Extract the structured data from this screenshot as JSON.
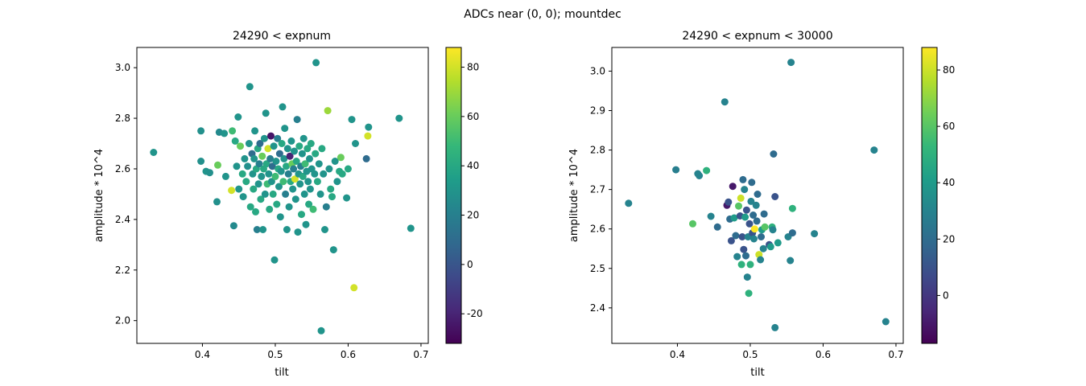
{
  "figure": {
    "suptitle": "ADCs near (0, 0); mountdec"
  },
  "colormap": {
    "name": "viridis",
    "stops": [
      "#440154",
      "#482878",
      "#3e4989",
      "#31688e",
      "#26828e",
      "#1f9e89",
      "#35b779",
      "#6ece58",
      "#b5de2b",
      "#fde725"
    ]
  },
  "chart_data": [
    {
      "type": "scatter",
      "title": "24290 < expnum",
      "xlabel": "tilt",
      "ylabel": "amplitude * 10^4",
      "xlim": [
        0.31,
        0.71
      ],
      "ylim": [
        1.91,
        3.08
      ],
      "xticks": [
        "0.4",
        "0.5",
        "0.6",
        "0.7"
      ],
      "yticks": [
        "2.0",
        "2.2",
        "2.4",
        "2.6",
        "2.8",
        "3.0"
      ],
      "colorbar": {
        "range": [
          -32,
          88
        ],
        "ticks": [
          "-20",
          "0",
          "20",
          "40",
          "60",
          "80"
        ]
      },
      "grid": false,
      "points": [
        {
          "x": 0.333,
          "y": 2.665,
          "c": 30
        },
        {
          "x": 0.398,
          "y": 2.75,
          "c": 28
        },
        {
          "x": 0.398,
          "y": 2.63,
          "c": 28
        },
        {
          "x": 0.405,
          "y": 2.59,
          "c": 30
        },
        {
          "x": 0.41,
          "y": 2.585,
          "c": 28
        },
        {
          "x": 0.42,
          "y": 2.47,
          "c": 28
        },
        {
          "x": 0.421,
          "y": 2.615,
          "c": 60
        },
        {
          "x": 0.423,
          "y": 2.745,
          "c": 25
        },
        {
          "x": 0.43,
          "y": 2.74,
          "c": 30
        },
        {
          "x": 0.432,
          "y": 2.57,
          "c": 30
        },
        {
          "x": 0.44,
          "y": 2.515,
          "c": 80
        },
        {
          "x": 0.441,
          "y": 2.75,
          "c": 50
        },
        {
          "x": 0.443,
          "y": 2.375,
          "c": 25
        },
        {
          "x": 0.445,
          "y": 2.71,
          "c": 40
        },
        {
          "x": 0.447,
          "y": 2.61,
          "c": 30
        },
        {
          "x": 0.449,
          "y": 2.805,
          "c": 30
        },
        {
          "x": 0.45,
          "y": 2.52,
          "c": 30
        },
        {
          "x": 0.452,
          "y": 2.69,
          "c": 60
        },
        {
          "x": 0.455,
          "y": 2.58,
          "c": 40
        },
        {
          "x": 0.456,
          "y": 2.49,
          "c": 30
        },
        {
          "x": 0.458,
          "y": 2.64,
          "c": 30
        },
        {
          "x": 0.46,
          "y": 2.55,
          "c": 40
        },
        {
          "x": 0.462,
          "y": 2.61,
          "c": 28
        },
        {
          "x": 0.464,
          "y": 2.7,
          "c": 30
        },
        {
          "x": 0.465,
          "y": 2.925,
          "c": 30
        },
        {
          "x": 0.466,
          "y": 2.45,
          "c": 40
        },
        {
          "x": 0.468,
          "y": 2.66,
          "c": 10
        },
        {
          "x": 0.469,
          "y": 2.58,
          "c": 30
        },
        {
          "x": 0.47,
          "y": 2.52,
          "c": 40
        },
        {
          "x": 0.471,
          "y": 2.64,
          "c": 30
        },
        {
          "x": 0.472,
          "y": 2.75,
          "c": 30
        },
        {
          "x": 0.473,
          "y": 2.43,
          "c": 40
        },
        {
          "x": 0.474,
          "y": 2.6,
          "c": 40
        },
        {
          "x": 0.475,
          "y": 2.36,
          "c": 20
        },
        {
          "x": 0.476,
          "y": 2.68,
          "c": 40
        },
        {
          "x": 0.477,
          "y": 2.54,
          "c": 30
        },
        {
          "x": 0.478,
          "y": 2.62,
          "c": 20
        },
        {
          "x": 0.479,
          "y": 2.7,
          "c": 10
        },
        {
          "x": 0.48,
          "y": 2.48,
          "c": 40
        },
        {
          "x": 0.481,
          "y": 2.57,
          "c": 30
        },
        {
          "x": 0.482,
          "y": 2.65,
          "c": 60
        },
        {
          "x": 0.483,
          "y": 2.36,
          "c": 30
        },
        {
          "x": 0.484,
          "y": 2.6,
          "c": 40
        },
        {
          "x": 0.485,
          "y": 2.72,
          "c": 30
        },
        {
          "x": 0.486,
          "y": 2.5,
          "c": 30
        },
        {
          "x": 0.487,
          "y": 2.82,
          "c": 30
        },
        {
          "x": 0.488,
          "y": 2.62,
          "c": 40
        },
        {
          "x": 0.489,
          "y": 2.54,
          "c": 50
        },
        {
          "x": 0.49,
          "y": 2.68,
          "c": 80
        },
        {
          "x": 0.491,
          "y": 2.58,
          "c": 30
        },
        {
          "x": 0.492,
          "y": 2.44,
          "c": 40
        },
        {
          "x": 0.493,
          "y": 2.64,
          "c": 20
        },
        {
          "x": 0.494,
          "y": 2.73,
          "c": -25
        },
        {
          "x": 0.495,
          "y": 2.55,
          "c": 30
        },
        {
          "x": 0.496,
          "y": 2.61,
          "c": 10
        },
        {
          "x": 0.497,
          "y": 2.5,
          "c": 40
        },
        {
          "x": 0.498,
          "y": 2.69,
          "c": 30
        },
        {
          "x": 0.499,
          "y": 2.24,
          "c": 30
        },
        {
          "x": 0.5,
          "y": 2.57,
          "c": 50
        },
        {
          "x": 0.501,
          "y": 2.63,
          "c": 30
        },
        {
          "x": 0.502,
          "y": 2.46,
          "c": 40
        },
        {
          "x": 0.503,
          "y": 2.72,
          "c": 20
        },
        {
          "x": 0.504,
          "y": 2.6,
          "c": 40
        },
        {
          "x": 0.505,
          "y": 2.53,
          "c": 30
        },
        {
          "x": 0.506,
          "y": 2.66,
          "c": 10
        },
        {
          "x": 0.507,
          "y": 2.41,
          "c": 30
        },
        {
          "x": 0.508,
          "y": 2.59,
          "c": 30
        },
        {
          "x": 0.509,
          "y": 2.7,
          "c": 40
        },
        {
          "x": 0.51,
          "y": 2.845,
          "c": 30
        },
        {
          "x": 0.511,
          "y": 2.55,
          "c": 50
        },
        {
          "x": 0.512,
          "y": 2.64,
          "c": 30
        },
        {
          "x": 0.513,
          "y": 2.76,
          "c": 30
        },
        {
          "x": 0.514,
          "y": 2.5,
          "c": 20
        },
        {
          "x": 0.515,
          "y": 2.61,
          "c": 40
        },
        {
          "x": 0.516,
          "y": 2.36,
          "c": 30
        },
        {
          "x": 0.517,
          "y": 2.68,
          "c": 30
        },
        {
          "x": 0.518,
          "y": 2.58,
          "c": 20
        },
        {
          "x": 0.519,
          "y": 2.45,
          "c": 30
        },
        {
          "x": 0.52,
          "y": 2.65,
          "c": -20
        },
        {
          "x": 0.521,
          "y": 2.55,
          "c": 40
        },
        {
          "x": 0.522,
          "y": 2.71,
          "c": 30
        },
        {
          "x": 0.523,
          "y": 2.62,
          "c": 60
        },
        {
          "x": 0.524,
          "y": 2.52,
          "c": 30
        },
        {
          "x": 0.525,
          "y": 2.6,
          "c": 20
        },
        {
          "x": 0.526,
          "y": 2.67,
          "c": 30
        },
        {
          "x": 0.527,
          "y": 2.56,
          "c": 80
        },
        {
          "x": 0.528,
          "y": 2.48,
          "c": 30
        },
        {
          "x": 0.529,
          "y": 2.63,
          "c": 40
        },
        {
          "x": 0.53,
          "y": 2.795,
          "c": 20
        },
        {
          "x": 0.531,
          "y": 2.35,
          "c": 30
        },
        {
          "x": 0.532,
          "y": 2.58,
          "c": 30
        },
        {
          "x": 0.533,
          "y": 2.69,
          "c": 40
        },
        {
          "x": 0.534,
          "y": 2.54,
          "c": 30
        },
        {
          "x": 0.535,
          "y": 2.61,
          "c": 20
        },
        {
          "x": 0.536,
          "y": 2.42,
          "c": 40
        },
        {
          "x": 0.537,
          "y": 2.66,
          "c": 30
        },
        {
          "x": 0.538,
          "y": 2.57,
          "c": 40
        },
        {
          "x": 0.539,
          "y": 2.72,
          "c": 30
        },
        {
          "x": 0.54,
          "y": 2.5,
          "c": 30
        },
        {
          "x": 0.541,
          "y": 2.62,
          "c": 50
        },
        {
          "x": 0.542,
          "y": 2.38,
          "c": 30
        },
        {
          "x": 0.543,
          "y": 2.59,
          "c": 30
        },
        {
          "x": 0.544,
          "y": 2.68,
          "c": 40
        },
        {
          "x": 0.545,
          "y": 2.55,
          "c": 30
        },
        {
          "x": 0.546,
          "y": 2.46,
          "c": 40
        },
        {
          "x": 0.547,
          "y": 2.64,
          "c": 30
        },
        {
          "x": 0.548,
          "y": 2.52,
          "c": 30
        },
        {
          "x": 0.549,
          "y": 2.7,
          "c": 40
        },
        {
          "x": 0.55,
          "y": 2.6,
          "c": 30
        },
        {
          "x": 0.552,
          "y": 2.44,
          "c": 50
        },
        {
          "x": 0.554,
          "y": 2.58,
          "c": 30
        },
        {
          "x": 0.555,
          "y": 2.66,
          "c": 40
        },
        {
          "x": 0.556,
          "y": 3.02,
          "c": 30
        },
        {
          "x": 0.558,
          "y": 2.55,
          "c": 40
        },
        {
          "x": 0.56,
          "y": 2.62,
          "c": 30
        },
        {
          "x": 0.562,
          "y": 2.5,
          "c": 30
        },
        {
          "x": 0.563,
          "y": 1.96,
          "c": 30
        },
        {
          "x": 0.564,
          "y": 2.68,
          "c": 40
        },
        {
          "x": 0.566,
          "y": 2.58,
          "c": 30
        },
        {
          "x": 0.568,
          "y": 2.36,
          "c": 30
        },
        {
          "x": 0.57,
          "y": 2.45,
          "c": 20
        },
        {
          "x": 0.572,
          "y": 2.83,
          "c": 70
        },
        {
          "x": 0.574,
          "y": 2.6,
          "c": 30
        },
        {
          "x": 0.576,
          "y": 2.52,
          "c": 40
        },
        {
          "x": 0.578,
          "y": 2.49,
          "c": 40
        },
        {
          "x": 0.58,
          "y": 2.28,
          "c": 30
        },
        {
          "x": 0.582,
          "y": 2.63,
          "c": 30
        },
        {
          "x": 0.585,
          "y": 2.55,
          "c": 30
        },
        {
          "x": 0.588,
          "y": 2.59,
          "c": 40
        },
        {
          "x": 0.59,
          "y": 2.645,
          "c": 60
        },
        {
          "x": 0.592,
          "y": 2.58,
          "c": 40
        },
        {
          "x": 0.598,
          "y": 2.485,
          "c": 30
        },
        {
          "x": 0.6,
          "y": 2.6,
          "c": 40
        },
        {
          "x": 0.605,
          "y": 2.795,
          "c": 30
        },
        {
          "x": 0.608,
          "y": 2.13,
          "c": 80
        },
        {
          "x": 0.61,
          "y": 2.7,
          "c": 30
        },
        {
          "x": 0.625,
          "y": 2.64,
          "c": 10
        },
        {
          "x": 0.627,
          "y": 2.73,
          "c": 80
        },
        {
          "x": 0.628,
          "y": 2.765,
          "c": 30
        },
        {
          "x": 0.67,
          "y": 2.8,
          "c": 30
        },
        {
          "x": 0.686,
          "y": 2.365,
          "c": 30
        }
      ]
    },
    {
      "type": "scatter",
      "title": "24290 < expnum < 30000",
      "xlabel": "tilt",
      "ylabel": "amplitude * 10^4",
      "xlim": [
        0.31,
        0.71
      ],
      "ylim": [
        2.31,
        3.06
      ],
      "xticks": [
        "0.4",
        "0.5",
        "0.6",
        "0.7"
      ],
      "yticks": [
        "2.4",
        "2.5",
        "2.6",
        "2.7",
        "2.8",
        "2.9",
        "3.0"
      ],
      "colorbar": {
        "range": [
          -17,
          88
        ],
        "ticks": [
          "0",
          "20",
          "40",
          "60",
          "80"
        ]
      },
      "grid": false,
      "points": [
        {
          "x": 0.333,
          "y": 2.665,
          "c": 30
        },
        {
          "x": 0.398,
          "y": 2.75,
          "c": 28
        },
        {
          "x": 0.421,
          "y": 2.613,
          "c": 60
        },
        {
          "x": 0.428,
          "y": 2.74,
          "c": 30
        },
        {
          "x": 0.43,
          "y": 2.735,
          "c": 30
        },
        {
          "x": 0.44,
          "y": 2.748,
          "c": 50
        },
        {
          "x": 0.446,
          "y": 2.632,
          "c": 30
        },
        {
          "x": 0.455,
          "y": 2.605,
          "c": 20
        },
        {
          "x": 0.465,
          "y": 2.922,
          "c": 30
        },
        {
          "x": 0.468,
          "y": 2.66,
          "c": -10
        },
        {
          "x": 0.47,
          "y": 2.668,
          "c": 10
        },
        {
          "x": 0.472,
          "y": 2.625,
          "c": 20
        },
        {
          "x": 0.474,
          "y": 2.57,
          "c": 10
        },
        {
          "x": 0.476,
          "y": 2.708,
          "c": -10
        },
        {
          "x": 0.478,
          "y": 2.628,
          "c": 40
        },
        {
          "x": 0.48,
          "y": 2.583,
          "c": 20
        },
        {
          "x": 0.482,
          "y": 2.53,
          "c": 30
        },
        {
          "x": 0.484,
          "y": 2.658,
          "c": 60
        },
        {
          "x": 0.486,
          "y": 2.633,
          "c": 10
        },
        {
          "x": 0.487,
          "y": 2.678,
          "c": 80
        },
        {
          "x": 0.488,
          "y": 2.51,
          "c": 50
        },
        {
          "x": 0.489,
          "y": 2.58,
          "c": 10
        },
        {
          "x": 0.49,
          "y": 2.725,
          "c": 20
        },
        {
          "x": 0.491,
          "y": 2.548,
          "c": 10
        },
        {
          "x": 0.492,
          "y": 2.7,
          "c": 30
        },
        {
          "x": 0.493,
          "y": 2.63,
          "c": 40
        },
        {
          "x": 0.494,
          "y": 2.532,
          "c": 20
        },
        {
          "x": 0.495,
          "y": 2.648,
          "c": 10
        },
        {
          "x": 0.496,
          "y": 2.478,
          "c": 30
        },
        {
          "x": 0.497,
          "y": 2.58,
          "c": 30
        },
        {
          "x": 0.498,
          "y": 2.437,
          "c": 50
        },
        {
          "x": 0.499,
          "y": 2.613,
          "c": 10
        },
        {
          "x": 0.5,
          "y": 2.51,
          "c": 50
        },
        {
          "x": 0.501,
          "y": 2.67,
          "c": 30
        },
        {
          "x": 0.502,
          "y": 2.718,
          "c": 20
        },
        {
          "x": 0.503,
          "y": 2.59,
          "c": 10
        },
        {
          "x": 0.504,
          "y": 2.635,
          "c": 20
        },
        {
          "x": 0.505,
          "y": 2.575,
          "c": 30
        },
        {
          "x": 0.506,
          "y": 2.6,
          "c": 88
        },
        {
          "x": 0.508,
          "y": 2.66,
          "c": 30
        },
        {
          "x": 0.509,
          "y": 2.62,
          "c": 20
        },
        {
          "x": 0.51,
          "y": 2.688,
          "c": 20
        },
        {
          "x": 0.512,
          "y": 2.535,
          "c": 80
        },
        {
          "x": 0.514,
          "y": 2.522,
          "c": 30
        },
        {
          "x": 0.515,
          "y": 2.58,
          "c": 20
        },
        {
          "x": 0.516,
          "y": 2.598,
          "c": 40
        },
        {
          "x": 0.518,
          "y": 2.55,
          "c": 30
        },
        {
          "x": 0.519,
          "y": 2.638,
          "c": 20
        },
        {
          "x": 0.52,
          "y": 2.605,
          "c": 60
        },
        {
          "x": 0.526,
          "y": 2.56,
          "c": 10
        },
        {
          "x": 0.528,
          "y": 2.555,
          "c": 40
        },
        {
          "x": 0.53,
          "y": 2.605,
          "c": 50
        },
        {
          "x": 0.531,
          "y": 2.598,
          "c": 30
        },
        {
          "x": 0.532,
          "y": 2.79,
          "c": 20
        },
        {
          "x": 0.534,
          "y": 2.682,
          "c": 10
        },
        {
          "x": 0.534,
          "y": 2.35,
          "c": 30
        },
        {
          "x": 0.538,
          "y": 2.565,
          "c": 40
        },
        {
          "x": 0.552,
          "y": 2.58,
          "c": 30
        },
        {
          "x": 0.555,
          "y": 2.52,
          "c": 30
        },
        {
          "x": 0.556,
          "y": 3.022,
          "c": 30
        },
        {
          "x": 0.558,
          "y": 2.652,
          "c": 50
        },
        {
          "x": 0.558,
          "y": 2.59,
          "c": 20
        },
        {
          "x": 0.588,
          "y": 2.588,
          "c": 30
        },
        {
          "x": 0.67,
          "y": 2.8,
          "c": 30
        },
        {
          "x": 0.686,
          "y": 2.365,
          "c": 30
        }
      ]
    }
  ]
}
